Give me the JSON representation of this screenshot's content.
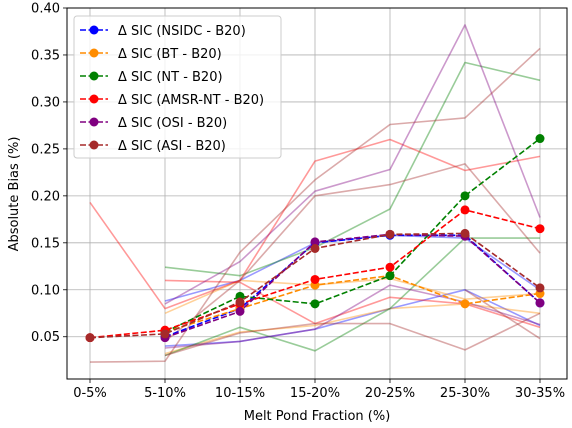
{
  "chart_data": {
    "type": "line",
    "title": "",
    "xlabel": "Melt Pond Fraction (%)",
    "ylabel": "Absolute Bias (%)",
    "categories": [
      "0-5%",
      "5-10%",
      "10-15%",
      "15-20%",
      "20-25%",
      "25-30%",
      "30-35%"
    ],
    "ylim": [
      0.005,
      0.4
    ],
    "yticks": [
      "0.05",
      "0.10",
      "0.15",
      "0.20",
      "0.25",
      "0.30",
      "0.35",
      "0.40"
    ],
    "grid": true,
    "legend_position": "top-left",
    "series": [
      {
        "name": "Δ SIC (NSIDC - B20)",
        "color": "#0000ff",
        "values": [
          null,
          0.05,
          0.08,
          0.15,
          0.158,
          0.158,
          0.086
        ]
      },
      {
        "name": "Δ SIC (BT - B20)",
        "color": "#ff8c00",
        "values": [
          null,
          0.055,
          0.08,
          0.105,
          0.115,
          0.085,
          0.096
        ]
      },
      {
        "name": "Δ SIC (NT - B20)",
        "color": "#008000",
        "values": [
          null,
          0.055,
          0.093,
          0.085,
          0.115,
          0.2,
          0.261
        ]
      },
      {
        "name": "Δ SIC (AMSR-NT - B20)",
        "color": "#ff0000",
        "values": [
          0.049,
          0.057,
          0.085,
          0.111,
          0.124,
          0.185,
          0.165
        ]
      },
      {
        "name": "Δ SIC (OSI - B20)",
        "color": "#800080",
        "values": [
          null,
          0.049,
          0.077,
          0.151,
          0.159,
          0.157,
          0.086
        ]
      },
      {
        "name": "Δ SIC (ASI - B20)",
        "color": "#a52a2a",
        "values": [
          0.049,
          0.053,
          0.087,
          0.144,
          0.159,
          0.16,
          0.102
        ]
      }
    ],
    "background_lines": [
      {
        "color": "#0000ff",
        "values": [
          null,
          0.088,
          0.11,
          0.15,
          0.158,
          0.155,
          0.1
        ]
      },
      {
        "color": "#0000ff",
        "values": [
          null,
          0.04,
          0.045,
          0.058,
          0.08,
          0.1,
          0.062
        ]
      },
      {
        "color": "#ff8c00",
        "values": [
          null,
          0.075,
          0.11,
          0.105,
          0.112,
          0.09,
          0.096
        ]
      },
      {
        "color": "#ff8c00",
        "values": [
          null,
          0.032,
          0.055,
          0.062,
          0.08,
          0.085,
          0.075
        ]
      },
      {
        "color": "#008000",
        "values": [
          null,
          0.124,
          0.115,
          0.145,
          0.186,
          0.342,
          0.323
        ]
      },
      {
        "color": "#008000",
        "values": [
          null,
          0.03,
          0.06,
          0.035,
          0.08,
          0.155,
          0.155
        ]
      },
      {
        "color": "#ff0000",
        "values": [
          0.193,
          0.08,
          0.11,
          0.237,
          0.26,
          0.227,
          0.242
        ]
      },
      {
        "color": "#ff0000",
        "values": [
          null,
          0.11,
          0.108,
          0.064,
          0.092,
          0.085,
          0.06
        ]
      },
      {
        "color": "#800080",
        "values": [
          null,
          0.085,
          0.13,
          0.205,
          0.228,
          0.382,
          0.177
        ]
      },
      {
        "color": "#800080",
        "values": [
          null,
          0.038,
          0.045,
          0.058,
          0.105,
          0.087,
          0.063
        ]
      },
      {
        "color": "#a52a2a",
        "values": [
          0.023,
          0.024,
          0.14,
          0.217,
          0.276,
          0.283,
          0.357
        ]
      },
      {
        "color": "#a52a2a",
        "values": [
          null,
          0.045,
          0.11,
          0.2,
          0.212,
          0.234,
          0.139
        ]
      },
      {
        "color": "#a52a2a",
        "values": [
          null,
          0.03,
          0.054,
          0.064,
          0.064,
          0.036,
          0.075
        ]
      },
      {
        "color": "#a52a2a",
        "values": [
          null,
          null,
          null,
          null,
          null,
          0.1,
          0.048
        ]
      }
    ]
  }
}
